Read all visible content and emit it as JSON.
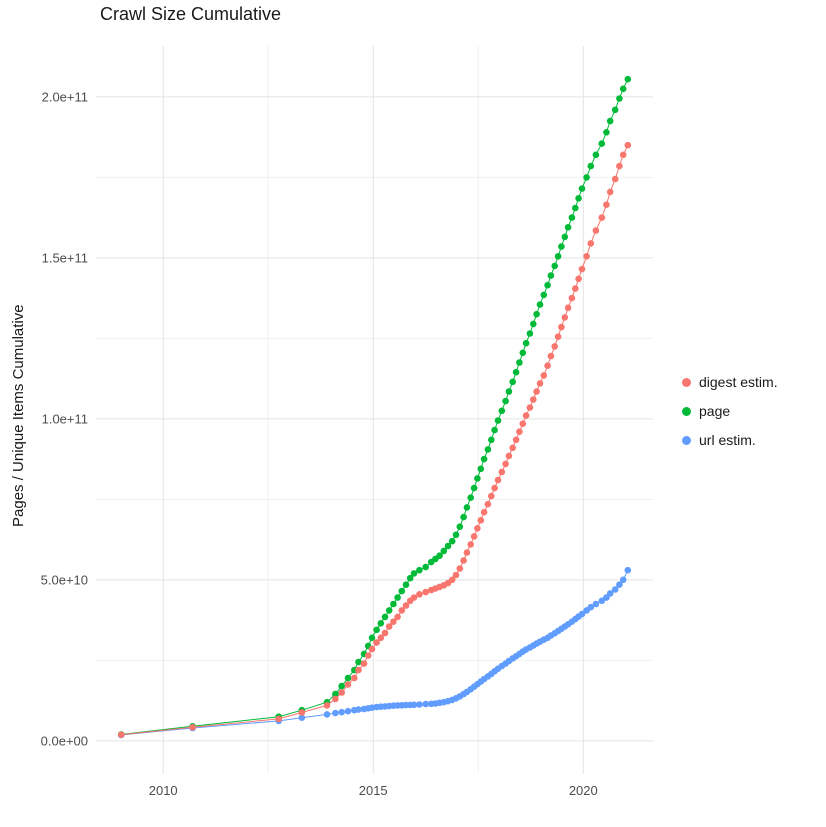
{
  "chart_data": {
    "type": "scatter",
    "title": "Crawl Size Cumulative",
    "xlabel": "",
    "ylabel": "Pages / Unique Items Cumulative",
    "x_ticks": [
      2010,
      2015,
      2020
    ],
    "x_tick_labels": [
      "2010",
      "2015",
      "2020"
    ],
    "y_ticks": [
      0,
      50000000000.0,
      100000000000.0,
      150000000000.0,
      200000000000.0
    ],
    "y_tick_labels": [
      "0.0e+00",
      "5.0e+10",
      "1.0e+11",
      "1.5e+11",
      "2.0e+11"
    ],
    "xlim": [
      2008.4,
      2021.66
    ],
    "ylim": [
      -10300000000.0,
      215800000000.0
    ],
    "grid": true,
    "legend_position": "right",
    "point_radius": 3.3,
    "series": [
      {
        "name": "digest estim.",
        "color": "#F8766D",
        "x": [
          2009.0,
          2010.7,
          2012.75,
          2013.3,
          2013.9,
          2014.1,
          2014.25,
          2014.4,
          2014.55,
          2014.65,
          2014.78,
          2014.88,
          2014.97,
          2015.08,
          2015.18,
          2015.28,
          2015.38,
          2015.48,
          2015.58,
          2015.68,
          2015.78,
          2015.88,
          2015.97,
          2016.1,
          2016.25,
          2016.38,
          2016.48,
          2016.58,
          2016.68,
          2016.78,
          2016.88,
          2016.97,
          2017.06,
          2017.15,
          2017.23,
          2017.32,
          2017.4,
          2017.48,
          2017.56,
          2017.64,
          2017.73,
          2017.81,
          2017.89,
          2017.97,
          2018.06,
          2018.15,
          2018.23,
          2018.32,
          2018.4,
          2018.48,
          2018.56,
          2018.64,
          2018.73,
          2018.81,
          2018.89,
          2018.97,
          2019.06,
          2019.15,
          2019.23,
          2019.32,
          2019.4,
          2019.48,
          2019.56,
          2019.64,
          2019.73,
          2019.81,
          2019.89,
          2019.97,
          2020.08,
          2020.18,
          2020.3,
          2020.44,
          2020.55,
          2020.64,
          2020.76,
          2020.86,
          2020.95,
          2021.06
        ],
        "y": [
          1900000000.0,
          4200000000.0,
          6800000000.0,
          8800000000.0,
          11000000000.0,
          13000000000.0,
          15000000000.0,
          17500000000.0,
          19500000000.0,
          22000000000.0,
          24000000000.0,
          26500000000.0,
          28500000000.0,
          30500000000.0,
          32000000000.0,
          33500000000.0,
          35500000000.0,
          37000000000.0,
          38500000000.0,
          40500000000.0,
          42000000000.0,
          43500000000.0,
          44500000000.0,
          45500000000.0,
          46200000000.0,
          46800000000.0,
          47300000000.0,
          47800000000.0,
          48300000000.0,
          49000000000.0,
          50000000000.0,
          51500000000.0,
          53500000000.0,
          56000000000.0,
          58500000000.0,
          61000000000.0,
          63500000000.0,
          66000000000.0,
          68500000000.0,
          71000000000.0,
          73500000000.0,
          76000000000.0,
          78500000000.0,
          81000000000.0,
          83500000000.0,
          86000000000.0,
          88500000000.0,
          91000000000.0,
          93500000000.0,
          96000000000.0,
          98500000000.0,
          101000000000.0,
          103500000000.0,
          106000000000.0,
          108500000000.0,
          111000000000.0,
          113500000000.0,
          116500000000.0,
          119500000000.0,
          122500000000.0,
          125500000000.0,
          128500000000.0,
          131500000000.0,
          134500000000.0,
          137500000000.0,
          140500000000.0,
          143500000000.0,
          146500000000.0,
          150500000000.0,
          154500000000.0,
          158500000000.0,
          162500000000.0,
          166500000000.0,
          170500000000.0,
          174500000000.0,
          178500000000.0,
          182000000000.0,
          185000000000.0
        ]
      },
      {
        "name": "page",
        "color": "#00BA38",
        "x": [
          2009.0,
          2010.7,
          2012.75,
          2013.3,
          2013.9,
          2014.1,
          2014.25,
          2014.4,
          2014.55,
          2014.65,
          2014.78,
          2014.88,
          2014.97,
          2015.08,
          2015.18,
          2015.28,
          2015.38,
          2015.48,
          2015.58,
          2015.68,
          2015.78,
          2015.88,
          2015.97,
          2016.1,
          2016.25,
          2016.38,
          2016.48,
          2016.58,
          2016.68,
          2016.78,
          2016.88,
          2016.97,
          2017.06,
          2017.15,
          2017.23,
          2017.32,
          2017.4,
          2017.48,
          2017.56,
          2017.64,
          2017.73,
          2017.81,
          2017.89,
          2017.97,
          2018.06,
          2018.15,
          2018.23,
          2018.32,
          2018.4,
          2018.48,
          2018.56,
          2018.64,
          2018.73,
          2018.81,
          2018.89,
          2018.97,
          2019.06,
          2019.15,
          2019.23,
          2019.32,
          2019.4,
          2019.48,
          2019.56,
          2019.64,
          2019.73,
          2019.81,
          2019.89,
          2019.97,
          2020.08,
          2020.18,
          2020.3,
          2020.44,
          2020.55,
          2020.64,
          2020.76,
          2020.86,
          2020.95,
          2021.06
        ],
        "y": [
          2000000000.0,
          4500000000.0,
          7500000000.0,
          9500000000.0,
          12000000000.0,
          14500000000.0,
          17000000000.0,
          19500000000.0,
          22000000000.0,
          24500000000.0,
          27000000000.0,
          29500000000.0,
          32000000000.0,
          34500000000.0,
          36500000000.0,
          38500000000.0,
          40500000000.0,
          42500000000.0,
          44500000000.0,
          46500000000.0,
          48500000000.0,
          50500000000.0,
          52000000000.0,
          53000000000.0,
          54000000000.0,
          55500000000.0,
          56500000000.0,
          57500000000.0,
          59000000000.0,
          60500000000.0,
          62000000000.0,
          64000000000.0,
          66500000000.0,
          69500000000.0,
          72500000000.0,
          75500000000.0,
          78500000000.0,
          81500000000.0,
          84500000000.0,
          87500000000.0,
          90500000000.0,
          93500000000.0,
          96500000000.0,
          99500000000.0,
          102500000000.0,
          105500000000.0,
          108500000000.0,
          111500000000.0,
          114500000000.0,
          117500000000.0,
          120500000000.0,
          123500000000.0,
          126500000000.0,
          129500000000.0,
          132500000000.0,
          135500000000.0,
          138500000000.0,
          141500000000.0,
          144500000000.0,
          147500000000.0,
          150500000000.0,
          153500000000.0,
          156500000000.0,
          159500000000.0,
          162500000000.0,
          165500000000.0,
          168500000000.0,
          171500000000.0,
          175000000000.0,
          178500000000.0,
          182000000000.0,
          185500000000.0,
          189000000000.0,
          192500000000.0,
          196000000000.0,
          199500000000.0,
          202500000000.0,
          205500000000.0
        ]
      },
      {
        "name": "url estim.",
        "color": "#619CFF",
        "x": [
          2009.0,
          2010.7,
          2012.75,
          2013.3,
          2013.9,
          2014.1,
          2014.25,
          2014.4,
          2014.55,
          2014.65,
          2014.78,
          2014.88,
          2014.97,
          2015.08,
          2015.18,
          2015.28,
          2015.38,
          2015.48,
          2015.58,
          2015.68,
          2015.78,
          2015.88,
          2015.97,
          2016.1,
          2016.25,
          2016.38,
          2016.48,
          2016.58,
          2016.68,
          2016.78,
          2016.88,
          2016.97,
          2017.06,
          2017.15,
          2017.23,
          2017.32,
          2017.4,
          2017.48,
          2017.56,
          2017.64,
          2017.73,
          2017.81,
          2017.89,
          2017.97,
          2018.06,
          2018.15,
          2018.23,
          2018.32,
          2018.4,
          2018.48,
          2018.56,
          2018.64,
          2018.73,
          2018.81,
          2018.89,
          2018.97,
          2019.06,
          2019.15,
          2019.23,
          2019.32,
          2019.4,
          2019.48,
          2019.56,
          2019.64,
          2019.73,
          2019.81,
          2019.89,
          2019.97,
          2020.08,
          2020.18,
          2020.3,
          2020.44,
          2020.55,
          2020.64,
          2020.76,
          2020.86,
          2020.95,
          2021.06
        ],
        "y": [
          1800000000.0,
          4000000000.0,
          6200000000.0,
          7200000000.0,
          8200000000.0,
          8600000000.0,
          8900000000.0,
          9200000000.0,
          9500000000.0,
          9700000000.0,
          9900000000.0,
          10100000000.0,
          10300000000.0,
          10500000000.0,
          10600000000.0,
          10700000000.0,
          10800000000.0,
          10900000000.0,
          11000000000.0,
          11050000000.0,
          11100000000.0,
          11150000000.0,
          11200000000.0,
          11300000000.0,
          11400000000.0,
          11500000000.0,
          11600000000.0,
          11800000000.0,
          12000000000.0,
          12300000000.0,
          12700000000.0,
          13200000000.0,
          13800000000.0,
          14500000000.0,
          15200000000.0,
          16000000000.0,
          16800000000.0,
          17600000000.0,
          18400000000.0,
          19200000000.0,
          20000000000.0,
          20800000000.0,
          21600000000.0,
          22400000000.0,
          23200000000.0,
          24000000000.0,
          24800000000.0,
          25600000000.0,
          26300000000.0,
          27000000000.0,
          27700000000.0,
          28400000000.0,
          29000000000.0,
          29600000000.0,
          30200000000.0,
          30800000000.0,
          31400000000.0,
          32000000000.0,
          32700000000.0,
          33400000000.0,
          34100000000.0,
          34800000000.0,
          35500000000.0,
          36200000000.0,
          37000000000.0,
          37800000000.0,
          38600000000.0,
          39400000000.0,
          40500000000.0,
          41500000000.0,
          42500000000.0,
          43500000000.0,
          44500000000.0,
          45800000000.0,
          47000000000.0,
          48500000000.0,
          50000000000.0,
          53000000000.0
        ]
      }
    ]
  }
}
